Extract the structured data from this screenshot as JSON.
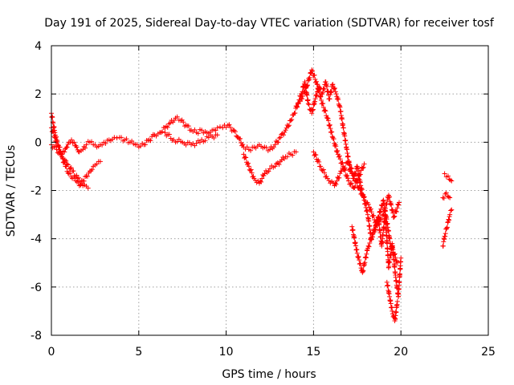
{
  "chart_data": {
    "type": "scatter",
    "title": "Day 191 of 2025, Sidereal Day-to-day VTEC variation (SDTVAR) for receiver tosf",
    "xlabel": "GPS time / hours",
    "ylabel": "SDTVAR / TECUs",
    "xlim": [
      0,
      25
    ],
    "ylim": [
      -8,
      4
    ],
    "x_ticks": [
      "0",
      "5",
      "10",
      "15",
      "20",
      "25"
    ],
    "y_ticks": [
      "4",
      "2",
      "0",
      "-2",
      "-4",
      "-6",
      "-8"
    ],
    "grid": true,
    "legend": "none",
    "marker": "+",
    "color": "#ff0000",
    "series": [
      {
        "segments": [
          {
            "x": [
              0.0,
              0.1,
              0.2,
              0.3,
              0.45,
              0.6,
              0.75,
              0.9,
              1.0,
              1.15,
              1.3,
              1.45,
              1.6,
              1.8,
              2.0,
              2.2,
              2.4,
              2.6,
              2.8,
              3.0,
              3.3,
              3.6,
              3.9,
              4.2,
              4.5,
              4.8,
              5.0,
              5.3,
              5.6,
              5.9,
              6.2,
              6.5,
              6.8,
              7.1,
              7.4,
              7.7,
              8.0,
              8.3,
              8.6,
              8.9,
              9.2,
              9.5,
              9.8,
              10.1,
              10.4,
              10.7,
              11.0,
              11.3,
              11.6,
              11.9,
              12.2,
              12.5,
              12.8,
              13.1,
              13.4,
              13.7,
              13.9,
              14.1,
              14.3,
              14.5,
              14.7,
              14.9,
              15.1,
              15.3,
              15.5,
              15.7,
              15.9,
              16.1,
              16.3,
              16.5,
              16.7,
              16.9,
              17.1,
              17.3,
              17.5,
              17.7,
              17.9,
              18.1,
              18.3,
              18.5,
              18.7,
              18.9,
              19.1,
              19.3,
              19.5,
              19.7,
              19.85,
              20.0
            ],
            "y": [
              1.2,
              0.8,
              0.4,
              0.1,
              -0.2,
              -0.5,
              -0.4,
              -0.2,
              0.0,
              0.1,
              0.0,
              -0.2,
              -0.4,
              -0.3,
              -0.1,
              0.0,
              -0.1,
              -0.2,
              -0.1,
              0.0,
              0.1,
              0.2,
              0.2,
              0.1,
              0.0,
              -0.1,
              -0.2,
              -0.1,
              0.1,
              0.3,
              0.4,
              0.6,
              0.8,
              1.0,
              0.9,
              0.7,
              0.5,
              0.4,
              0.5,
              0.4,
              0.5,
              0.6,
              0.6,
              0.7,
              0.5,
              0.2,
              -0.2,
              -0.3,
              -0.2,
              -0.1,
              -0.2,
              -0.3,
              -0.1,
              0.2,
              0.5,
              0.9,
              1.2,
              1.6,
              2.0,
              2.5,
              1.6,
              1.2,
              1.8,
              2.3,
              2.0,
              2.5,
              1.8,
              2.4,
              2.0,
              1.5,
              0.6,
              -0.3,
              -1.2,
              -1.5,
              -1.0,
              -1.8,
              -2.4,
              -3.0,
              -4.0,
              -3.6,
              -3.1,
              -4.3,
              -3.0,
              -5.2,
              -4.2,
              -5.6,
              -6.4,
              -4.8
            ]
          },
          {
            "x": [
              0.0,
              0.2,
              0.4,
              0.6,
              0.8,
              1.0,
              1.2,
              1.4,
              1.6,
              1.8,
              2.0,
              2.2,
              2.4,
              2.6,
              2.8
            ],
            "y": [
              0.6,
              0.2,
              -0.2,
              -0.6,
              -1.0,
              -1.3,
              -1.5,
              -1.6,
              -1.8,
              -1.6,
              -1.4,
              -1.2,
              -1.0,
              -0.9,
              -0.8
            ]
          },
          {
            "x": [
              0.0,
              0.3,
              0.6,
              0.9,
              1.2,
              1.5,
              1.8,
              2.1
            ],
            "y": [
              -0.1,
              -0.3,
              -0.6,
              -0.9,
              -1.2,
              -1.5,
              -1.8,
              -1.9
            ]
          },
          {
            "x": [
              6.5,
              7.0,
              7.5,
              8.0,
              8.5,
              9.0,
              9.5
            ],
            "y": [
              0.4,
              0.1,
              0.0,
              -0.1,
              0.0,
              0.2,
              0.3
            ]
          },
          {
            "x": [
              11.0,
              11.3,
              11.6,
              11.9,
              12.2,
              12.5,
              12.8,
              13.1,
              13.4,
              13.7,
              14.0
            ],
            "y": [
              -0.5,
              -1.0,
              -1.5,
              -1.7,
              -1.3,
              -1.1,
              -1.0,
              -0.8,
              -0.6,
              -0.5,
              -0.4
            ]
          },
          {
            "x": [
              14.0,
              14.3,
              14.6,
              14.9,
              15.2,
              15.5,
              15.8,
              16.1,
              16.4,
              16.7,
              17.0,
              17.3,
              17.6,
              17.9
            ],
            "y": [
              1.5,
              1.8,
              2.3,
              3.0,
              2.4,
              1.6,
              1.0,
              0.2,
              -0.5,
              -1.0,
              -1.6,
              -1.9,
              -1.4,
              -0.9
            ]
          },
          {
            "x": [
              15.0,
              15.4,
              15.8,
              16.2,
              16.6,
              17.0,
              17.4,
              17.8,
              18.2,
              18.6,
              19.0,
              19.4,
              19.8
            ],
            "y": [
              -0.4,
              -1.0,
              -1.5,
              -1.8,
              -1.2,
              -0.8,
              -1.6,
              -2.2,
              -2.7,
              -3.4,
              -2.4,
              -4.2,
              -5.0
            ]
          },
          {
            "x": [
              17.2,
              17.5,
              17.8,
              18.1,
              18.4,
              18.7,
              19.0,
              19.3,
              19.6,
              19.9
            ],
            "y": [
              -3.5,
              -4.6,
              -5.4,
              -4.4,
              -3.8,
              -3.3,
              -3.0,
              -2.2,
              -3.1,
              -2.5
            ]
          },
          {
            "x": [
              19.2,
              19.35,
              19.5,
              19.65,
              19.8
            ],
            "y": [
              -5.8,
              -6.4,
              -7.0,
              -7.4,
              -6.6
            ]
          },
          {
            "x": [
              22.4,
              22.5,
              22.6,
              22.7,
              22.8,
              22.9
            ],
            "y": [
              -4.3,
              -3.9,
              -3.6,
              -3.3,
              -3.0,
              -2.8
            ]
          },
          {
            "x": [
              22.4,
              22.6,
              22.8
            ],
            "y": [
              -2.3,
              -2.1,
              -2.3
            ]
          },
          {
            "x": [
              22.5,
              22.7,
              22.9
            ],
            "y": [
              -1.3,
              -1.4,
              -1.6
            ]
          }
        ]
      }
    ]
  }
}
